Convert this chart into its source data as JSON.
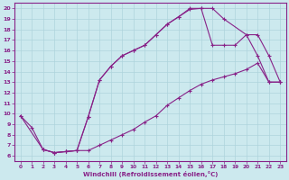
{
  "bg_color": "#cce9ee",
  "grid_color": "#aed4dc",
  "line_color": "#882288",
  "xlabel": "Windchill (Refroidissement éolien,°C)",
  "curve_a_x": [
    0,
    1,
    2,
    3,
    4,
    5,
    6,
    7,
    8,
    9,
    10,
    11,
    12,
    13,
    14,
    15,
    16,
    17,
    18,
    20,
    21,
    22,
    23
  ],
  "curve_a_y": [
    9.8,
    8.7,
    6.6,
    6.3,
    6.4,
    6.5,
    9.7,
    13.2,
    14.5,
    15.5,
    16.0,
    16.5,
    17.5,
    18.5,
    19.2,
    19.9,
    20.0,
    20.0,
    19.0,
    17.5,
    17.5,
    15.5,
    13.0
  ],
  "curve_b_x": [
    2,
    3,
    4,
    5,
    6,
    7,
    8,
    9,
    10,
    11,
    12,
    13,
    14,
    15,
    16,
    17,
    18,
    19,
    20,
    21,
    22,
    23
  ],
  "curve_b_y": [
    6.6,
    6.3,
    6.4,
    6.5,
    9.7,
    13.2,
    14.5,
    15.5,
    16.0,
    16.5,
    17.5,
    18.5,
    19.2,
    20.0,
    20.0,
    16.5,
    16.5,
    16.5,
    17.5,
    15.5,
    13.0,
    13.0
  ],
  "curve_c_x": [
    0,
    2,
    3,
    4,
    5,
    6,
    7,
    8,
    9,
    10,
    11,
    12,
    13,
    14,
    15,
    16,
    17,
    18,
    19,
    20,
    21,
    22,
    23
  ],
  "curve_c_y": [
    9.8,
    6.6,
    6.3,
    6.4,
    6.5,
    6.5,
    7.0,
    7.5,
    8.0,
    8.5,
    9.2,
    9.8,
    10.8,
    11.5,
    12.2,
    12.8,
    13.2,
    13.5,
    13.8,
    14.2,
    14.8,
    13.0,
    13.0
  ],
  "xmin": 0,
  "xmax": 23,
  "ymin": 6,
  "ymax": 20
}
